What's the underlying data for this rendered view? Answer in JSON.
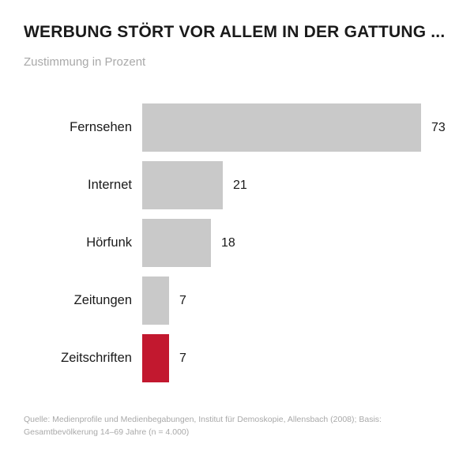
{
  "header": {
    "title": "WERBUNG STÖRT VOR ALLEM IN DER GATTUNG ...",
    "subtitle": "Zustimmung in Prozent"
  },
  "chart_data": {
    "type": "bar",
    "orientation": "horizontal",
    "title": "WERBUNG STÖRT VOR ALLEM IN DER GATTUNG ...",
    "subtitle": "Zustimmung in Prozent",
    "unit": "Prozent",
    "categories": [
      "Fernsehen",
      "Internet",
      "Hörfunk",
      "Zeitungen",
      "Zeitschriften"
    ],
    "values": [
      73,
      21,
      18,
      7,
      7
    ],
    "value_labels": [
      "73",
      "21",
      "18",
      "7",
      "7"
    ],
    "highlight_index": 4,
    "xlim": [
      0,
      75
    ],
    "grid": false,
    "legend": false,
    "colors": {
      "bar": "#c9c9c9",
      "highlight": "#c2182f",
      "title_text": "#1a1a1a",
      "muted_text": "#a9a9a9"
    }
  },
  "footer": {
    "source_line1": "Quelle: Medienprofile und Medienbegabungen, Institut für Demoskopie, Allensbach (2008); Basis:",
    "source_line2": "Gesamtbevölkerung 14–69 Jahre (n = 4.000)"
  }
}
